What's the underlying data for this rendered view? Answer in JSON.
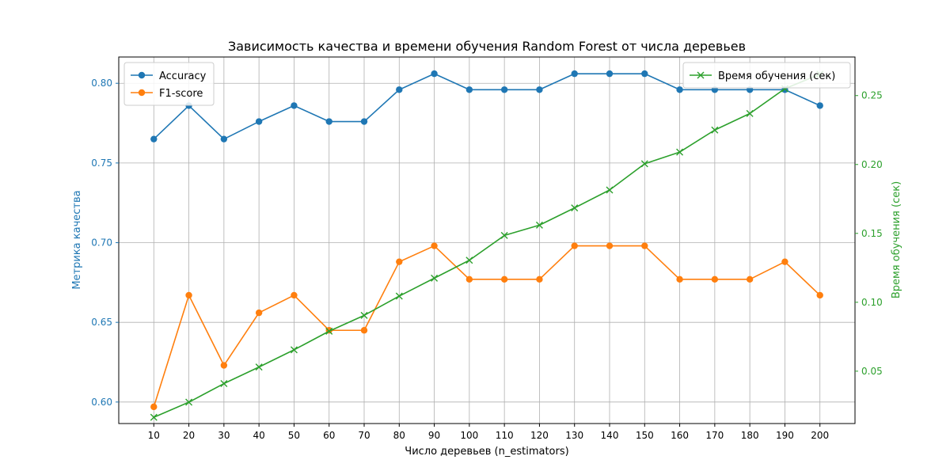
{
  "chart_data": {
    "type": "line",
    "title": "Зависимость качества и времени обучения Random Forest от числа деревьев",
    "xlabel": "Число деревьев (n_estimators)",
    "ylabel_left": "Метрика качества",
    "ylabel_right": "Время обучения (сек)",
    "x": [
      10,
      20,
      30,
      40,
      50,
      60,
      70,
      80,
      90,
      100,
      110,
      120,
      130,
      140,
      150,
      160,
      170,
      180,
      190,
      200
    ],
    "xlim": [
      0,
      210
    ],
    "ylim_left": [
      0.5865,
      0.8165
    ],
    "ylim_right": [
      0.012,
      0.278
    ],
    "yticks_left": [
      "0.60",
      "0.65",
      "0.70",
      "0.75",
      "0.80"
    ],
    "yticks_right": [
      "0.05",
      "0.10",
      "0.15",
      "0.20",
      "0.25"
    ],
    "grid": true,
    "series_left": [
      {
        "name": "Accuracy",
        "color": "#1f77b4",
        "marker": "circle",
        "values": [
          0.765,
          0.786,
          0.765,
          0.776,
          0.786,
          0.776,
          0.776,
          0.796,
          0.806,
          0.796,
          0.796,
          0.796,
          0.806,
          0.806,
          0.806,
          0.796,
          0.796,
          0.796,
          0.796,
          0.786
        ]
      },
      {
        "name": "F1-score",
        "color": "#ff7f0e",
        "marker": "circle",
        "values": [
          0.597,
          0.667,
          0.623,
          0.656,
          0.667,
          0.645,
          0.645,
          0.688,
          0.698,
          0.677,
          0.677,
          0.677,
          0.698,
          0.698,
          0.698,
          0.677,
          0.677,
          0.677,
          0.688,
          0.667
        ]
      }
    ],
    "series_right": [
      {
        "name": "Время обучения (сек)",
        "color": "#2ca02c",
        "marker": "x",
        "values": [
          0.0165,
          0.0275,
          0.041,
          0.053,
          0.0655,
          0.079,
          0.0905,
          0.1045,
          0.1175,
          0.1305,
          0.1485,
          0.156,
          0.1685,
          0.1815,
          0.2005,
          0.209,
          0.225,
          0.237,
          0.255,
          0.2655
        ]
      }
    ],
    "legend_left_position": "upper-left",
    "legend_right_position": "upper-right",
    "axis_colors": {
      "left": "#1f77b4",
      "right": "#2ca02c",
      "grid": "#b0b0b0"
    }
  }
}
